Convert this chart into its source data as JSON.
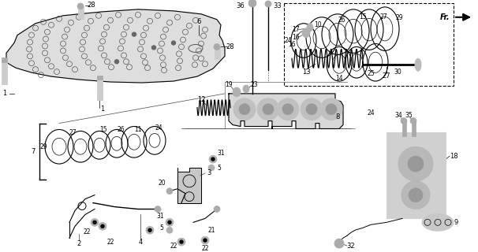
{
  "bg_color": "#ffffff",
  "black": "#000000",
  "gray": "#888888",
  "light_gray": "#cccccc",
  "plate_color": "#e0e0e0",
  "fig_w": 6.06,
  "fig_h": 3.2,
  "dpi": 100
}
